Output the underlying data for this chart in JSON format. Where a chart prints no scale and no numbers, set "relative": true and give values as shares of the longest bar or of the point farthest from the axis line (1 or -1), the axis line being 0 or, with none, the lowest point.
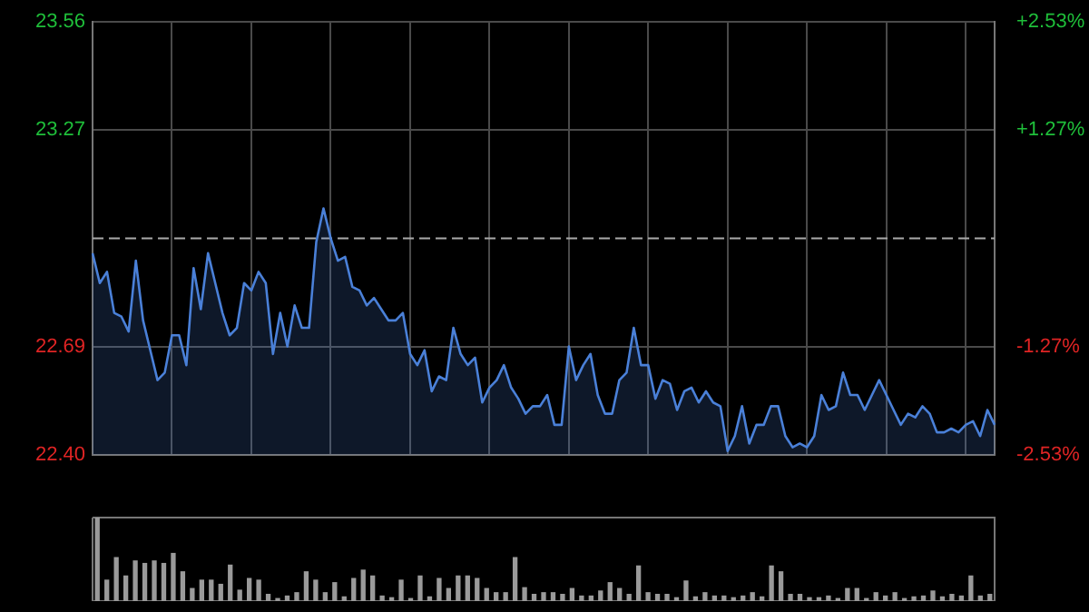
{
  "chart_data": [
    {
      "type": "area",
      "categories": [
        null,
        null,
        null,
        null,
        null,
        null,
        null,
        null,
        null,
        null,
        null,
        null,
        null,
        null,
        null,
        null,
        null,
        null,
        null,
        null,
        null,
        null,
        null,
        null,
        null,
        null,
        null,
        null,
        null,
        null,
        null,
        null,
        null,
        null,
        null,
        null,
        null,
        null,
        null,
        null,
        null,
        null,
        null,
        null,
        null,
        null,
        null,
        null,
        null,
        null,
        null,
        null,
        null,
        null,
        null,
        null,
        null,
        null,
        null,
        null,
        null,
        null,
        null,
        null,
        null,
        null,
        null,
        null,
        null,
        null,
        null,
        null,
        null,
        null,
        null,
        null,
        null,
        null,
        null,
        null,
        null,
        null,
        null,
        null,
        null,
        null,
        null,
        null,
        null,
        null,
        null,
        null,
        null,
        null,
        null,
        null,
        null,
        null,
        null,
        null,
        null,
        null,
        null,
        null,
        null,
        null,
        null,
        null,
        null,
        null,
        null,
        null,
        null,
        null,
        null,
        null,
        null,
        null,
        null,
        null,
        null,
        null,
        null,
        null,
        null,
        null
      ],
      "series": [
        {
          "color": "#4a80d8",
          "values": [
            22.94,
            22.86,
            22.89,
            22.78,
            22.77,
            22.73,
            22.92,
            22.76,
            22.68,
            22.6,
            22.62,
            22.72,
            22.72,
            22.64,
            22.9,
            22.79,
            22.94,
            22.86,
            22.78,
            22.72,
            22.74,
            22.86,
            22.84,
            22.89,
            22.86,
            22.67,
            22.78,
            22.69,
            22.8,
            22.74,
            22.74,
            22.97,
            23.06,
            22.98,
            22.92,
            22.93,
            22.85,
            22.84,
            22.8,
            22.82,
            22.79,
            22.76,
            22.76,
            22.78,
            22.67,
            22.64,
            22.68,
            22.57,
            22.61,
            22.6,
            22.74,
            22.67,
            22.64,
            22.66,
            22.54,
            22.58,
            22.6,
            22.64,
            22.58,
            22.55,
            22.51,
            22.53,
            22.53,
            22.56,
            22.48,
            22.48,
            22.69,
            22.6,
            22.64,
            22.67,
            22.56,
            22.51,
            22.51,
            22.6,
            22.62,
            22.74,
            22.64,
            22.64,
            22.55,
            22.6,
            22.59,
            22.52,
            22.57,
            22.58,
            22.54,
            22.57,
            22.54,
            22.53,
            22.41,
            22.45,
            22.53,
            22.43,
            22.48,
            22.48,
            22.53,
            22.53,
            22.45,
            22.42,
            22.43,
            22.42,
            22.45,
            22.56,
            22.52,
            22.53,
            22.62,
            22.56,
            22.56,
            22.52,
            22.56,
            22.6,
            22.56,
            22.52,
            22.48,
            22.51,
            22.5,
            22.53,
            22.51,
            22.46,
            22.46,
            22.47,
            22.46,
            22.48,
            22.49,
            22.45,
            22.52,
            22.48
          ]
        }
      ],
      "ylim": [
        22.4,
        23.56
      ],
      "yticks": [
        {
          "value": 22.4,
          "label": "22.40"
        },
        {
          "value": 22.69,
          "label": "22.69"
        },
        {
          "value": 23.27,
          "label": "23.27"
        },
        {
          "value": 23.56,
          "label": "23.56"
        }
      ],
      "y2lim": [
        -2.53,
        2.53
      ],
      "y2ticks": [
        {
          "value": -2.53,
          "label": "-2.53%"
        },
        {
          "value": -1.27,
          "label": "-1.27%"
        },
        {
          "value": 1.27,
          "label": "+1.27%"
        },
        {
          "value": 2.53,
          "label": "+2.53%"
        }
      ],
      "ref_lines": [
        {
          "axis": "y",
          "value": 22.98,
          "color": "#aaaaaa",
          "line_style": "dashed"
        }
      ],
      "grid": true,
      "tick_labels": "y"
    },
    {
      "type": "bar",
      "relative": true,
      "categories": [
        null,
        null,
        null,
        null,
        null,
        null,
        null,
        null,
        null,
        null,
        null,
        null,
        null,
        null,
        null,
        null,
        null,
        null,
        null,
        null,
        null,
        null,
        null,
        null,
        null,
        null,
        null,
        null,
        null,
        null,
        null,
        null,
        null,
        null,
        null,
        null,
        null,
        null,
        null,
        null,
        null,
        null,
        null,
        null,
        null,
        null,
        null,
        null,
        null,
        null,
        null,
        null,
        null,
        null,
        null,
        null,
        null,
        null,
        null,
        null,
        null,
        null,
        null,
        null,
        null,
        null,
        null,
        null,
        null,
        null,
        null,
        null,
        null,
        null,
        null,
        null,
        null,
        null,
        null,
        null,
        null,
        null,
        null,
        null,
        null,
        null,
        null,
        null,
        null,
        null,
        null,
        null,
        null,
        null,
        null
      ],
      "values": [
        1.0,
        0.25,
        0.52,
        0.3,
        0.48,
        0.45,
        0.48,
        0.45,
        0.57,
        0.35,
        0.15,
        0.25,
        0.25,
        0.2,
        0.43,
        0.13,
        0.27,
        0.25,
        0.08,
        0.03,
        0.06,
        0.1,
        0.35,
        0.25,
        0.1,
        0.22,
        0.05,
        0.27,
        0.37,
        0.3,
        0.06,
        0.04,
        0.25,
        0.03,
        0.3,
        0.05,
        0.27,
        0.15,
        0.3,
        0.3,
        0.27,
        0.15,
        0.1,
        0.1,
        0.52,
        0.16,
        0.08,
        0.1,
        0.1,
        0.08,
        0.15,
        0.06,
        0.06,
        0.12,
        0.22,
        0.15,
        0.08,
        0.42,
        0.1,
        0.08,
        0.08,
        0.04,
        0.24,
        0.05,
        0.1,
        0.06,
        0.06,
        0.04,
        0.06,
        0.1,
        0.05,
        0.42,
        0.35,
        0.08,
        0.08,
        0.04,
        0.04,
        0.06,
        0.03,
        0.15,
        0.15,
        0.03,
        0.1,
        0.06,
        0.1,
        0.03,
        0.05,
        0.06,
        0.12,
        0.05,
        0.08,
        0.06,
        0.3,
        0.06,
        0.08
      ],
      "color": "#9a9a9a",
      "tick_labels": false
    }
  ]
}
